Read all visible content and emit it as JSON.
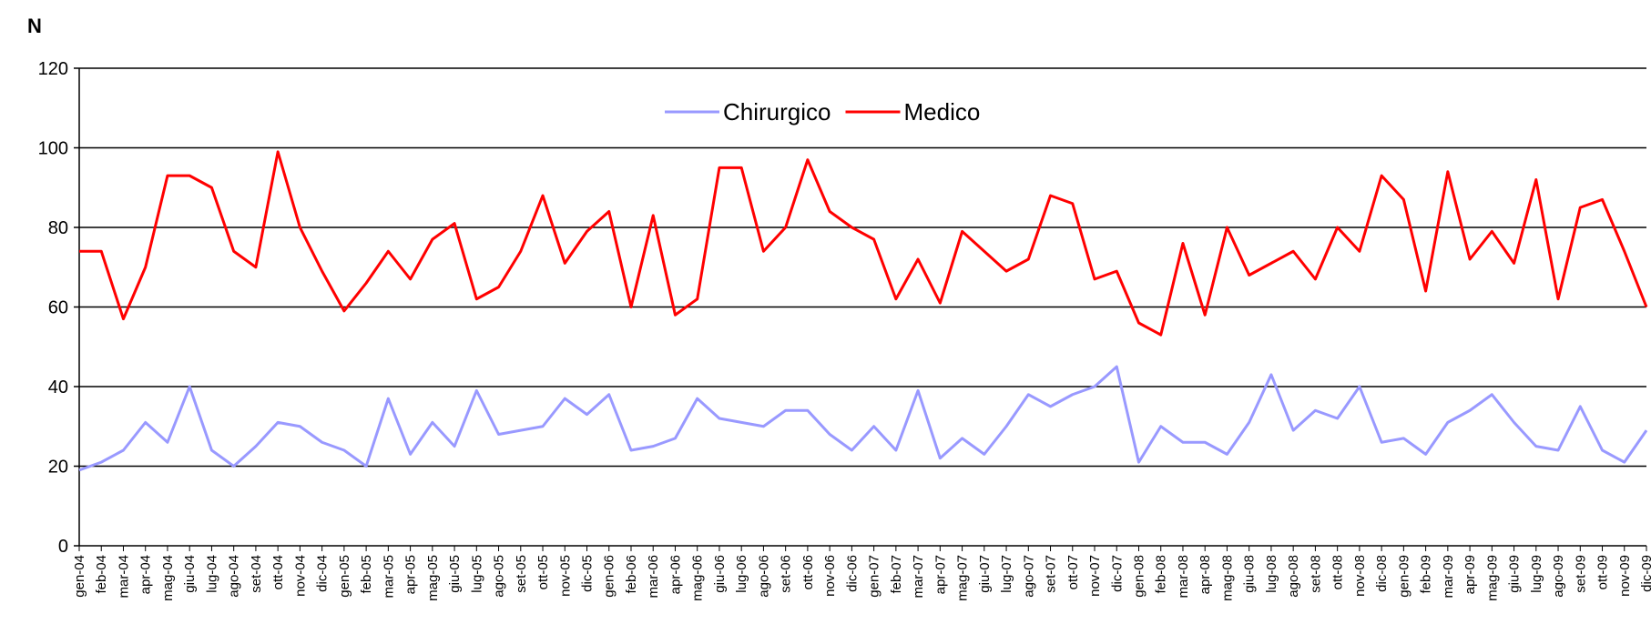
{
  "chart_data": {
    "type": "line",
    "y_label": "N",
    "categories": [
      "gen-04",
      "feb-04",
      "mar-04",
      "apr-04",
      "mag-04",
      "giu-04",
      "lug-04",
      "ago-04",
      "set-04",
      "ott-04",
      "nov-04",
      "dic-04",
      "gen-05",
      "feb-05",
      "mar-05",
      "apr-05",
      "mag-05",
      "giu-05",
      "lug-05",
      "ago-05",
      "set-05",
      "ott-05",
      "nov-05",
      "dic-05",
      "gen-06",
      "feb-06",
      "mar-06",
      "apr-06",
      "mag-06",
      "giu-06",
      "lug-06",
      "ago-06",
      "set-06",
      "ott-06",
      "nov-06",
      "dic-06",
      "gen-07",
      "feb-07",
      "mar-07",
      "apr-07",
      "mag-07",
      "giu-07",
      "lug-07",
      "ago-07",
      "set-07",
      "ott-07",
      "nov-07",
      "dic-07",
      "gen-08",
      "feb-08",
      "mar-08",
      "apr-08",
      "mag-08",
      "giu-08",
      "lug-08",
      "ago-08",
      "set-08",
      "ott-08",
      "nov-08",
      "dic-08",
      "gen-09",
      "feb-09",
      "mar-09",
      "apr-09",
      "mag-09",
      "giu-09",
      "lug-09",
      "ago-09",
      "set-09",
      "ott-09",
      "nov-09",
      "dic-09"
    ],
    "series": [
      {
        "name": "Chirurgico",
        "color": "#9999ff",
        "values": [
          19,
          21,
          24,
          31,
          26,
          40,
          24,
          20,
          25,
          31,
          30,
          26,
          24,
          20,
          37,
          23,
          31,
          25,
          39,
          28,
          29,
          30,
          37,
          33,
          38,
          24,
          25,
          27,
          37,
          32,
          31,
          30,
          34,
          34,
          28,
          24,
          30,
          24,
          39,
          22,
          27,
          23,
          30,
          38,
          35,
          38,
          40,
          45,
          21,
          30,
          26,
          26,
          23,
          31,
          43,
          29,
          34,
          32,
          40,
          26,
          27,
          23,
          31,
          34,
          38,
          31,
          25,
          24,
          35,
          24,
          21,
          29
        ]
      },
      {
        "name": "Medico",
        "color": "#ff0000",
        "values": [
          74,
          74,
          57,
          70,
          93,
          93,
          90,
          74,
          70,
          99,
          80,
          69,
          59,
          66,
          74,
          67,
          77,
          81,
          62,
          65,
          74,
          88,
          71,
          79,
          84,
          60,
          83,
          58,
          62,
          95,
          95,
          74,
          80,
          97,
          84,
          80,
          77,
          62,
          72,
          61,
          79,
          74,
          69,
          72,
          88,
          86,
          67,
          69,
          56,
          53,
          76,
          58,
          80,
          68,
          71,
          74,
          67,
          80,
          74,
          93,
          87,
          64,
          94,
          72,
          79,
          71,
          92,
          62,
          85,
          87,
          74,
          60
        ]
      }
    ],
    "ylim": [
      0,
      120
    ],
    "yticks": [
      0,
      20,
      40,
      60,
      80,
      100,
      120
    ],
    "grid": true,
    "legend": "top"
  }
}
